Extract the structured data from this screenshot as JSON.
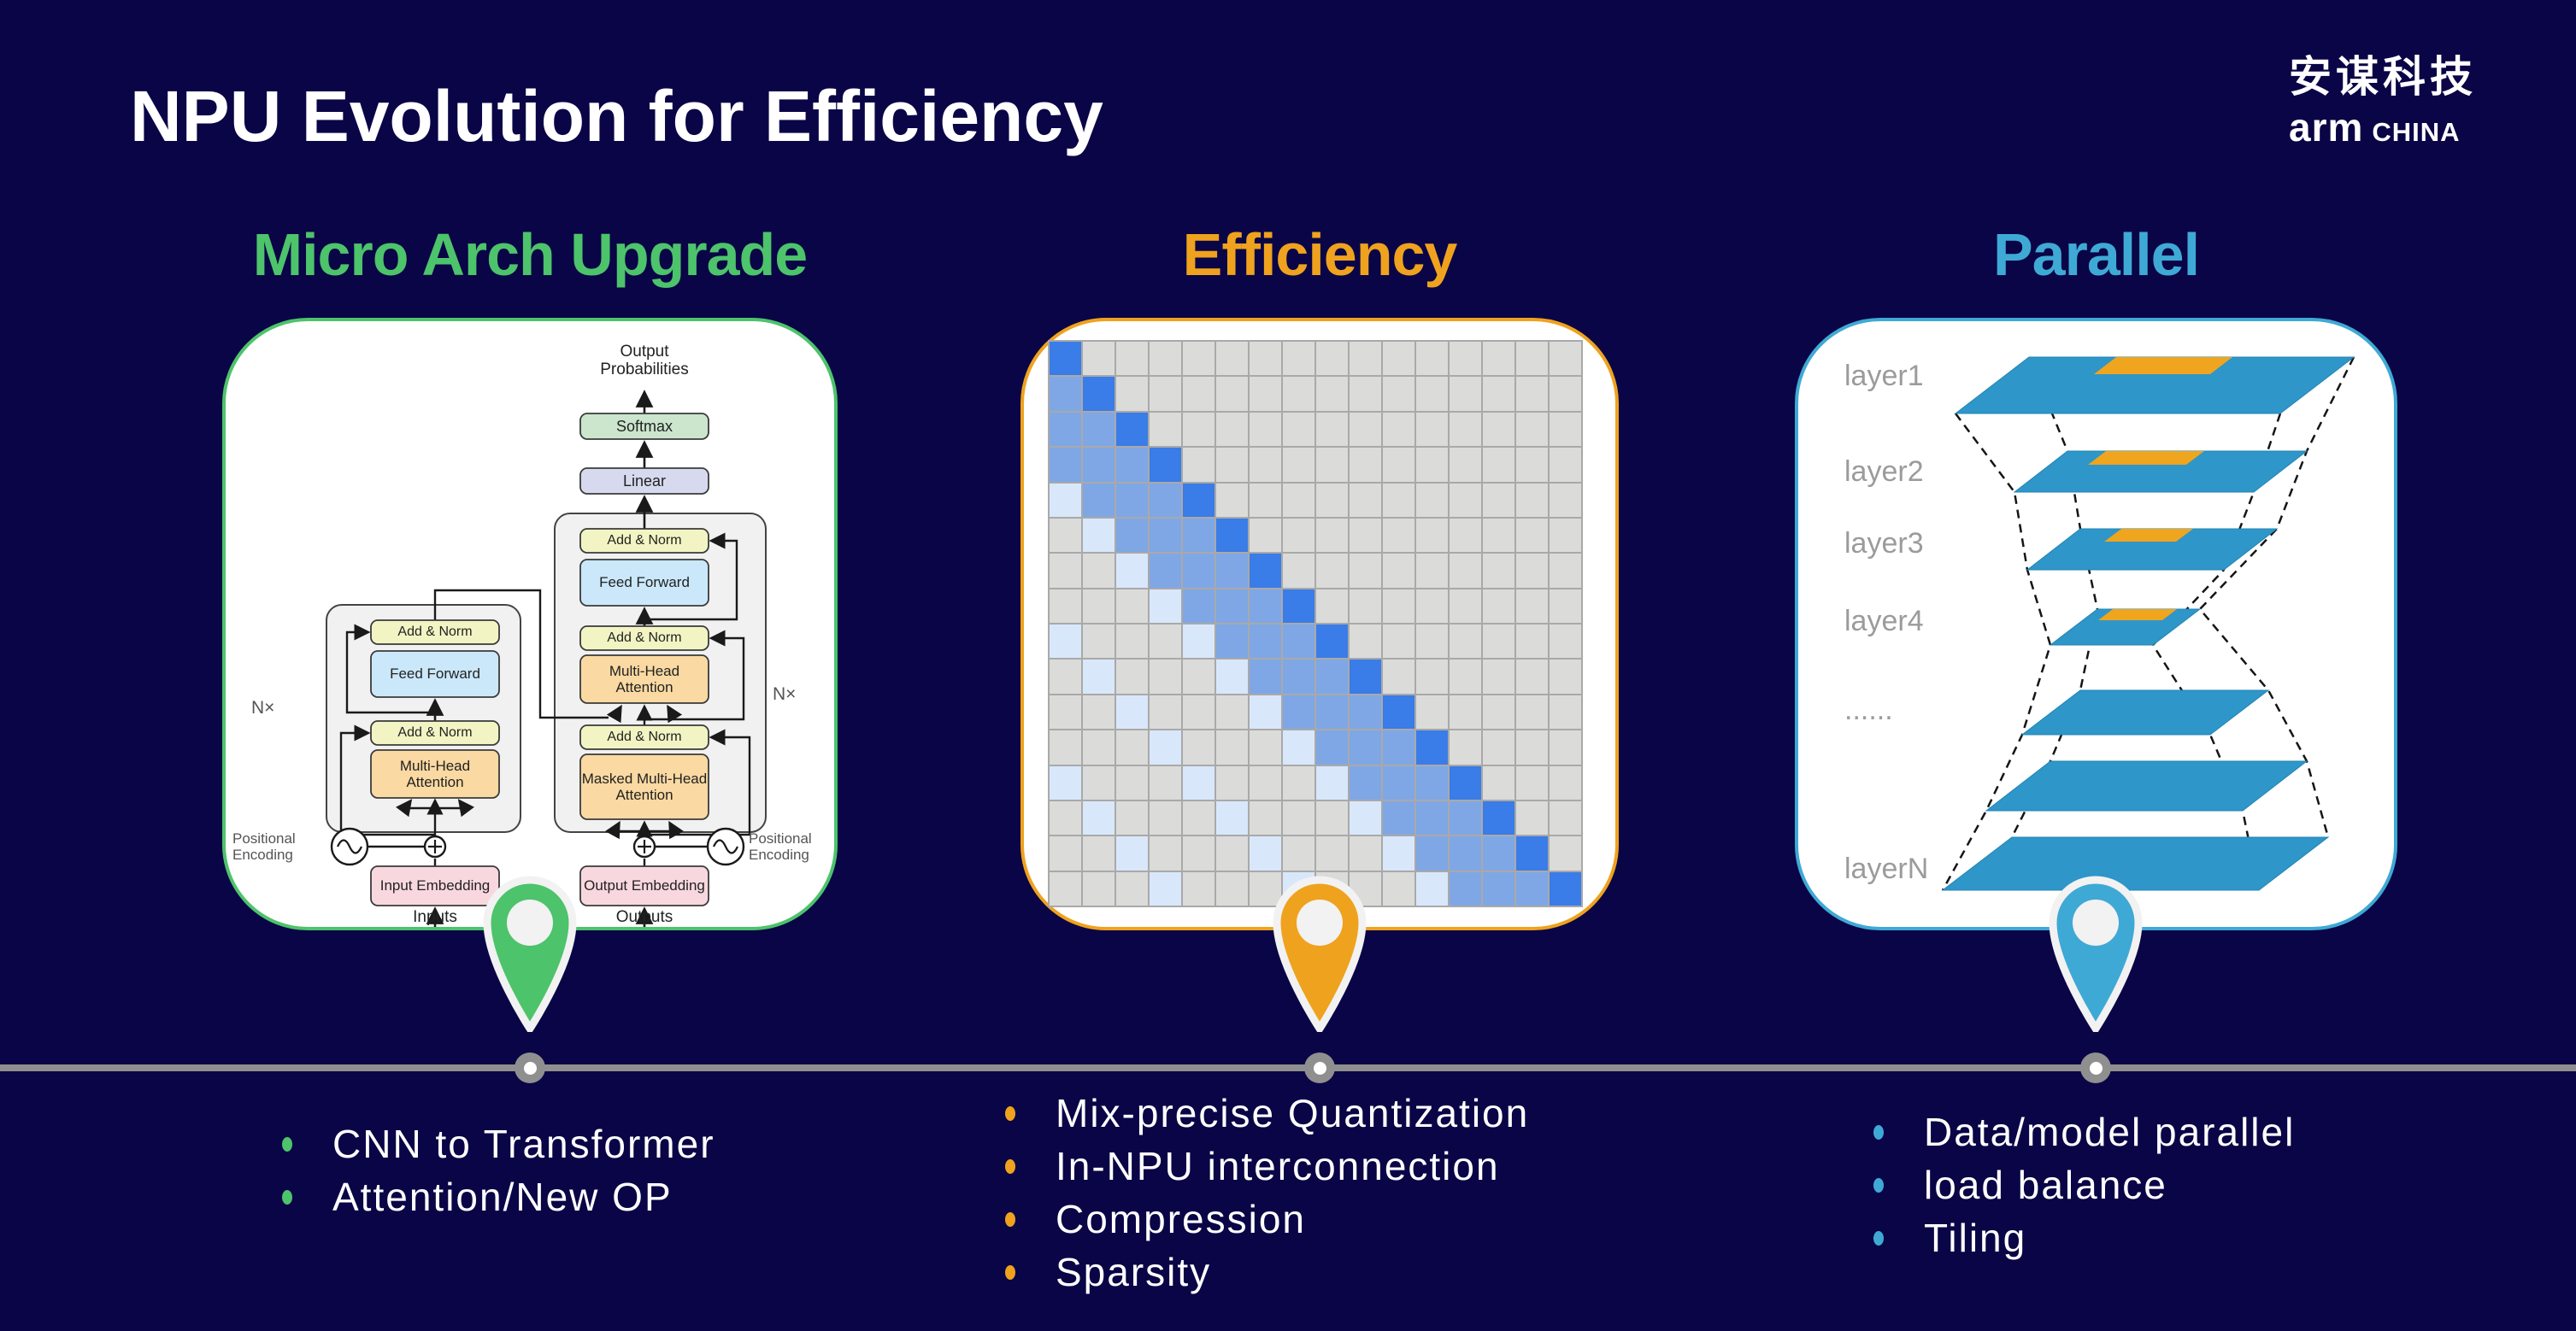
{
  "slide": {
    "title": "NPU Evolution for Efficiency",
    "background": "#0A0546"
  },
  "logo": {
    "chinese": "安谋科技",
    "brand": "arm",
    "region": "CHINA"
  },
  "timeline": {
    "line_color": "#8F8F8F",
    "node_color": "#8F8F8F",
    "node_center_color": "#FFFFFF"
  },
  "columns": [
    {
      "heading": "Micro Arch Upgrade",
      "accent": "#4DC36B",
      "bullets": [
        "CNN to Transformer",
        "Attention/New OP"
      ]
    },
    {
      "heading": "Efficiency",
      "accent": "#EFA21E",
      "bullets": [
        "Mix-precise Quantization",
        "In-NPU interconnection",
        "Compression",
        "Sparsity"
      ]
    },
    {
      "heading": "Parallel",
      "accent": "#3FA9D5",
      "bullets": [
        "Data/model parallel",
        "load balance",
        "Tiling"
      ]
    }
  ],
  "transformer": {
    "output_probabilities": "Output Probabilities",
    "softmax": "Softmax",
    "linear": "Linear",
    "add_norm": "Add & Norm",
    "feed_forward": "Feed Forward",
    "multi_head_attention": "Multi-Head Attention",
    "masked_multi_head_attention": "Masked Multi-Head Attention",
    "n_times": "N×",
    "positional_encoding": "Positional Encoding",
    "input_embedding": "Input Embedding",
    "output_embedding": "Output Embedding",
    "inputs": "Inputs",
    "outputs": "Outputs"
  },
  "matrix": {
    "rows": 16,
    "cols": 16,
    "legend": {
      "g": "#DBDBD9",
      "l": "#D9E7FB",
      "m": "#80A7E5",
      "d": "#3A7CE8"
    },
    "grid_line_color": "#A9A9A9",
    "pattern": [
      "dggggggggggggggg",
      "mdgggggggggggggg",
      "mmdggggggggggggg",
      "mmmdgggggggggggg",
      "lmmmdggggggggggg",
      "glmmmdgggggggggg",
      "gglmmmdggggggggg",
      "ggglmmmdgggggggg",
      "lggglmmmdggggggg",
      "glggglmmmdgggggg",
      "gglggglmmmdggggg",
      "ggglggglmmmdgggg",
      "lggglggglmmmdggg",
      "glggglggglmmmdgg",
      "gglggglggglmmmdg",
      "ggglggglggglmmmd"
    ]
  },
  "parallel_layers": {
    "labels": [
      "layer1",
      "layer2",
      "layer3",
      "layer4",
      "......",
      "layerN"
    ],
    "plane_color": "#2E96C8",
    "patch_color": "#EFA51E"
  }
}
